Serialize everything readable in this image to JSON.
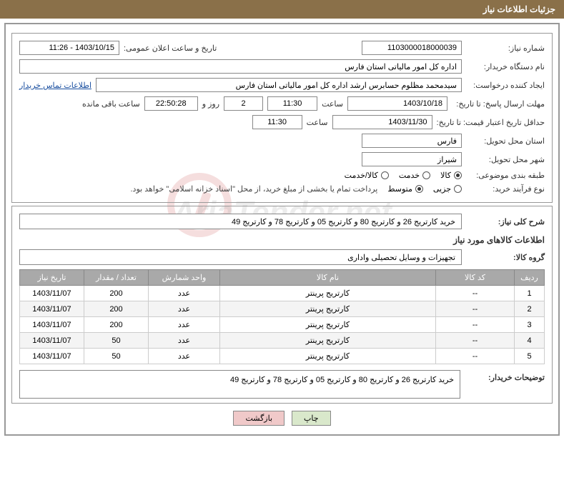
{
  "titleBar": "جزئیات اطلاعات نیاز",
  "watermark": "AriaTender.net",
  "fields": {
    "needNumberLabel": "شماره نیاز:",
    "needNumber": "1103000018000039",
    "announceDateLabel": "تاریخ و ساعت اعلان عمومی:",
    "announceDate": "1403/10/15 - 11:26",
    "buyerOrgLabel": "نام دستگاه خریدار:",
    "buyerOrg": "اداره کل امور مالیاتی استان فارس",
    "requesterLabel": "ایجاد کننده درخواست:",
    "requester": "سیدمحمد مظلوم حسابرس ارشد اداره کل امور مالیاتی استان فارس",
    "contactLink": "اطلاعات تماس خریدار",
    "replyDeadlineLabel": "مهلت ارسال پاسخ: تا تاریخ:",
    "replyDeadlineDate": "1403/10/18",
    "timeLabel": "ساعت",
    "replyDeadlineTime": "11:30",
    "daysCount": "2",
    "daysAnd": "روز و",
    "countdown": "22:50:28",
    "remainingLabel": "ساعت باقی مانده",
    "priceValidityLabel": "حداقل تاریخ اعتبار قیمت: تا تاریخ:",
    "priceValidityDate": "1403/11/30",
    "priceValidityTime": "11:30",
    "deliveryProvLabel": "استان محل تحویل:",
    "deliveryProv": "فارس",
    "deliveryCityLabel": "شهر محل تحویل:",
    "deliveryCity": "شیراز",
    "classificationLabel": "طبقه بندی موضوعی:",
    "classOptions": {
      "goods": "کالا",
      "service": "خدمت",
      "goodsService": "کالا/خدمت"
    },
    "classSelected": "goods",
    "purchaseTypeLabel": "نوع فرآیند خرید:",
    "purchaseOptions": {
      "small": "جزیی",
      "medium": "متوسط"
    },
    "purchaseSelected": "medium",
    "purchaseNote": "پرداخت تمام یا بخشی از مبلغ خرید، از محل \"اسناد خزانه اسلامی\" خواهد بود.",
    "generalDescLabel": "شرح کلی نیاز:",
    "generalDesc": "خرید کارتریج 26 و کارتریج 80 و کارتریج 05 و کارتریج 78 و کارتریج 49",
    "goodsInfoHeading": "اطلاعات کالاهای مورد نیاز",
    "goodsGroupLabel": "گروه کالا:",
    "goodsGroup": "تجهیزات و وسایل تحصیلی واداری",
    "tableHeaders": {
      "row": "ردیف",
      "code": "کد کالا",
      "name": "نام کالا",
      "unit": "واحد شمارش",
      "qty": "تعداد / مقدار",
      "date": "تاریخ نیاز"
    },
    "tableRows": [
      {
        "row": "1",
        "code": "--",
        "name": "کارتریج پرینتر",
        "unit": "عدد",
        "qty": "200",
        "date": "1403/11/07"
      },
      {
        "row": "2",
        "code": "--",
        "name": "کارتریج پرینتر",
        "unit": "عدد",
        "qty": "200",
        "date": "1403/11/07"
      },
      {
        "row": "3",
        "code": "--",
        "name": "کارتریج پرینتر",
        "unit": "عدد",
        "qty": "200",
        "date": "1403/11/07"
      },
      {
        "row": "4",
        "code": "--",
        "name": "کارتریج پرینتر",
        "unit": "عدد",
        "qty": "50",
        "date": "1403/11/07"
      },
      {
        "row": "5",
        "code": "--",
        "name": "کارتریج پرینتر",
        "unit": "عدد",
        "qty": "50",
        "date": "1403/11/07"
      }
    ],
    "buyerNotesLabel": "توضیحات خریدار:",
    "buyerNotes": "خرید کارتریج 26 و کارتریج 80 و کارتریج 05 و کارتریج 78 و کارتریج 49"
  },
  "buttons": {
    "print": "چاپ",
    "back": "بازگشت"
  },
  "colors": {
    "titleBg": "#8a7049",
    "thBg": "#a9a9a9",
    "printBg": "#d9e8cb",
    "backBg": "#f0c9c9",
    "link": "#1a4fa0"
  }
}
